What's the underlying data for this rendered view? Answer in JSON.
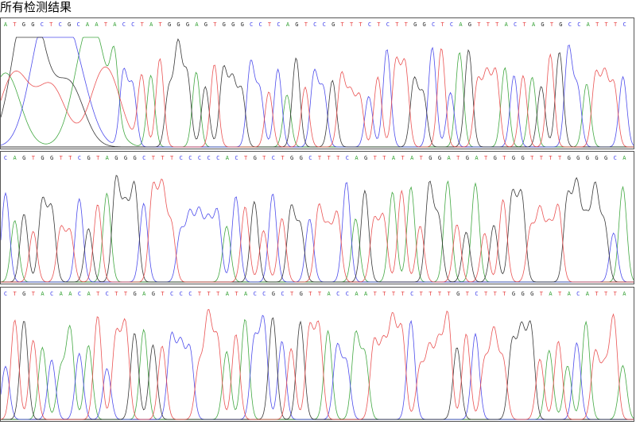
{
  "header": {
    "title": "所有检测结果"
  },
  "colors": {
    "A": "#2e9e2e",
    "C": "#3a3aea",
    "G": "#222222",
    "T": "#e84040",
    "N": "#2e9e2e"
  },
  "panels": [
    {
      "sequence": "ATGGCTCGCAATACCTATGGGAGTGGGCCTCAGTCCGTTTCTCTTGGCTCAGTTTACTAGTGCCATTTC"
    },
    {
      "sequence": "CAGTGGTTCGTAGGGCTTTCCCCCACTGTCTGGCTTTCAGTTATATGGATGATGTGGTTTTGGGGGCA"
    },
    {
      "sequence": "CTGTACAACATCTTGAGTCCCTTTATACCGCTGTTACCAATTTTCTTTTGTCTTTGGGTATACATTTA"
    }
  ]
}
